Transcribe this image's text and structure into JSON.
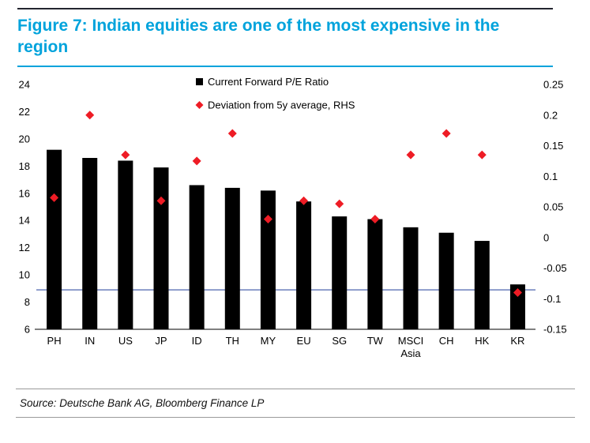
{
  "figure": {
    "title": "Figure 7: Indian equities are one of the most expensive in the region",
    "source": "Source: Deutsche Bank AG, Bloomberg Finance LP"
  },
  "colors": {
    "title": "#00A3DC",
    "accent_rule": "#00A3DC",
    "top_rule": "#23252F",
    "bar": "#000000",
    "diamond": "#EE1C25",
    "reference_line": "#3A53A4",
    "axis": "#000000"
  },
  "chart_data": {
    "type": "bar",
    "title": "",
    "categories": [
      "PH",
      "IN",
      "US",
      "JP",
      "ID",
      "TH",
      "MY",
      "EU",
      "SG",
      "TW",
      "MSCI Asia",
      "CH",
      "HK",
      "KR"
    ],
    "series": [
      {
        "name": "Current Forward P/E Ratio",
        "type": "bar",
        "axis": "left",
        "values": [
          19.2,
          18.6,
          18.4,
          17.9,
          16.6,
          16.4,
          16.2,
          15.4,
          14.3,
          14.1,
          13.5,
          13.1,
          12.5,
          9.3
        ]
      },
      {
        "name": "Deviation from 5y average, RHS",
        "type": "scatter",
        "marker": "diamond",
        "axis": "right",
        "values": [
          0.065,
          0.2,
          0.135,
          0.06,
          0.125,
          0.17,
          0.03,
          0.06,
          0.055,
          0.03,
          0.135,
          0.17,
          0.135,
          -0.09
        ]
      }
    ],
    "left_axis": {
      "min": 6,
      "max": 24,
      "tick_labels": [
        "24",
        "22",
        "20",
        "18",
        "16",
        "14",
        "12",
        "10",
        "8",
        "6"
      ]
    },
    "right_axis": {
      "min": -0.15,
      "max": 0.25,
      "tick_labels": [
        "0.25",
        "0.2",
        "0.15",
        "0.1",
        "0.05",
        "0",
        "-0.05",
        "-0.1",
        "-0.15"
      ]
    },
    "reference_line": {
      "axis": "left",
      "value": 8.9
    },
    "legend": [
      "Current Forward P/E Ratio",
      "Deviation from 5y average, RHS"
    ],
    "legend_position": "top-center",
    "grid": false
  }
}
